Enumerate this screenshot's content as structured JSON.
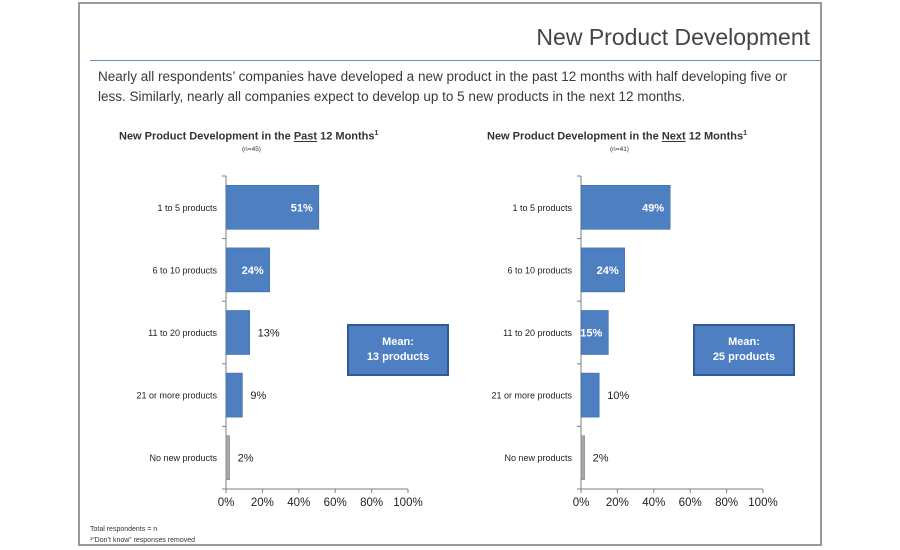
{
  "slide": {
    "title": "New Product Development",
    "intro": "Nearly all respondents’ companies have developed a new product in the past 12 months with half developing five or less. Similarly, nearly all companies expect to develop up to 5 new products in the next 12 months."
  },
  "colors": {
    "bar": "#4e80c1",
    "bar_neutral": "#a6a6a6",
    "rule": "#5b8bc8",
    "mean_box": "#4d7fc2"
  },
  "footnotes": {
    "line1": "Total respondents = n",
    "line2": "¹“Don’t know” responses removed"
  },
  "chart_data": [
    {
      "type": "bar",
      "orientation": "horizontal",
      "title_prefix": "New Product Development in the ",
      "title_emphasis": "Past",
      "title_suffix": " 12 Months",
      "title_sup": "1",
      "n_label": "(n=45)",
      "categories": [
        "1 to 5 products",
        "6 to 10 products",
        "11 to 20 products",
        "21 or more products",
        "No new products"
      ],
      "values": [
        51,
        24,
        13,
        9,
        2
      ],
      "value_labels": [
        "51%",
        "24%",
        "13%",
        "9%",
        "2%"
      ],
      "xlim": [
        0,
        100
      ],
      "xticks": [
        "0%",
        "20%",
        "40%",
        "60%",
        "80%",
        "100%"
      ],
      "mean_label": "Mean:",
      "mean_value": "13 products"
    },
    {
      "type": "bar",
      "orientation": "horizontal",
      "title_prefix": "New Product Development in the ",
      "title_emphasis": "Next",
      "title_suffix": " 12 Months",
      "title_sup": "1",
      "n_label": "(n=41)",
      "categories": [
        "1 to 5 products",
        "6 to 10 products",
        "11 to 20 products",
        "21 or more products",
        "No new products"
      ],
      "values": [
        49,
        24,
        15,
        10,
        2
      ],
      "value_labels": [
        "49%",
        "24%",
        "15%",
        "10%",
        "2%"
      ],
      "xlim": [
        0,
        100
      ],
      "xticks": [
        "0%",
        "20%",
        "40%",
        "60%",
        "80%",
        "100%"
      ],
      "mean_label": "Mean:",
      "mean_value": "25 products"
    }
  ]
}
